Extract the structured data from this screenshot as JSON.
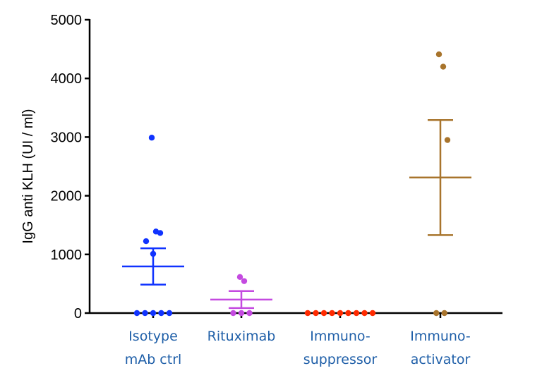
{
  "chart_data": {
    "type": "scatter",
    "ylabel": "IgG anti KLH (UI / ml)",
    "xlabel": "",
    "ylim": [
      0,
      5000
    ],
    "yticks": [
      {
        "value": 0,
        "label": "0"
      },
      {
        "value": 1000,
        "label": "1000"
      },
      {
        "value": 2000,
        "label": "2000"
      },
      {
        "value": 3000,
        "label": "3000"
      },
      {
        "value": 4000,
        "label": "4000"
      },
      {
        "value": 5000,
        "label": "5000"
      }
    ],
    "category_label_color": "#1f5fa8",
    "groups": [
      {
        "label_lines": [
          "Isotype",
          "mAb ctrl"
        ],
        "color": "#1033ff",
        "points": [
          2990,
          1390,
          1365,
          1225,
          1010,
          0,
          0,
          0,
          0,
          0
        ],
        "mean": 795,
        "sem_low": 485,
        "sem_high": 1105
      },
      {
        "label_lines": [
          "Rituximab"
        ],
        "color": "#c44ae0",
        "points": [
          615,
          545,
          0,
          0,
          0
        ],
        "mean": 230,
        "sem_low": 85,
        "sem_high": 375
      },
      {
        "label_lines": [
          "Immuno-",
          "suppressor"
        ],
        "color": "#ff2a00",
        "points": [
          0,
          0,
          0,
          0,
          0,
          0,
          0,
          0,
          0
        ],
        "mean": 0,
        "sem_low": 0,
        "sem_high": 0
      },
      {
        "label_lines": [
          "Immuno-",
          "activator"
        ],
        "color": "#a8742c",
        "points": [
          4410,
          4200,
          2950,
          0,
          0
        ],
        "mean": 2310,
        "sem_low": 1330,
        "sem_high": 3290
      }
    ]
  }
}
